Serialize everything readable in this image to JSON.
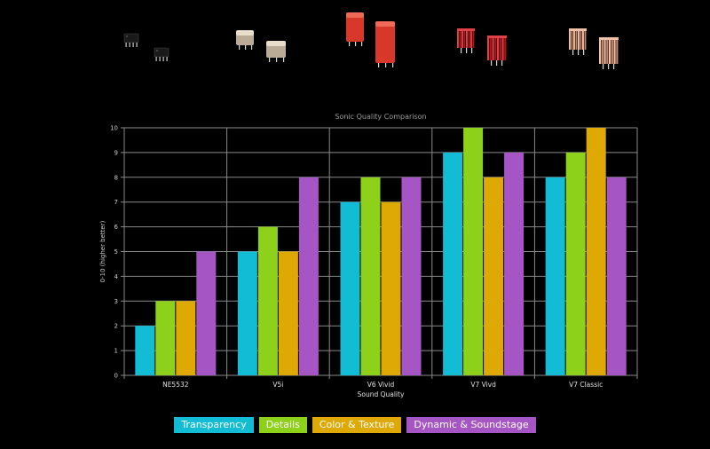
{
  "colors": {
    "background": "#000000",
    "transparency": "#12BCD4",
    "details": "#8ED11A",
    "color_texture": "#DFA905",
    "dynamic_soundstage": "#A655C4",
    "grid": "#8a8a8a"
  },
  "products": [
    {
      "name": "NE5532",
      "icon": "dip8-opamp-chips-icon"
    },
    {
      "name": "V5i",
      "icon": "metal-can-opamp-modules-icon"
    },
    {
      "name": "V6 Vivid",
      "icon": "red-opamp-modules-icon"
    },
    {
      "name": "V7 Vivd",
      "icon": "red-finned-opamp-modules-icon"
    },
    {
      "name": "V7 Classic",
      "icon": "copper-finned-opamp-modules-icon"
    }
  ],
  "chart_data": {
    "type": "bar",
    "title": "Sonic Quality Comparison",
    "xlabel": "Sound Quality",
    "ylabel": "0-10 (higher better)",
    "ylim": [
      0,
      10
    ],
    "yticks": [
      0,
      1,
      2,
      3,
      4,
      5,
      6,
      7,
      8,
      9,
      10
    ],
    "grid": true,
    "legend_position": "bottom-center",
    "categories": [
      "NE5532",
      "V5i",
      "V6 Vivid",
      "V7 Vivd",
      "V7 Classic"
    ],
    "series": [
      {
        "name": "Transparency",
        "color": "#12BCD4",
        "values": [
          2,
          5,
          7,
          9,
          8
        ]
      },
      {
        "name": "Details",
        "color": "#8ED11A",
        "values": [
          3,
          6,
          8,
          10,
          9
        ]
      },
      {
        "name": "Color & Texture",
        "color": "#DFA905",
        "values": [
          3,
          5,
          7,
          8,
          10
        ]
      },
      {
        "name": "Dynamic & Soundstage",
        "color": "#A655C4",
        "values": [
          5,
          8,
          8,
          9,
          8
        ]
      }
    ]
  }
}
